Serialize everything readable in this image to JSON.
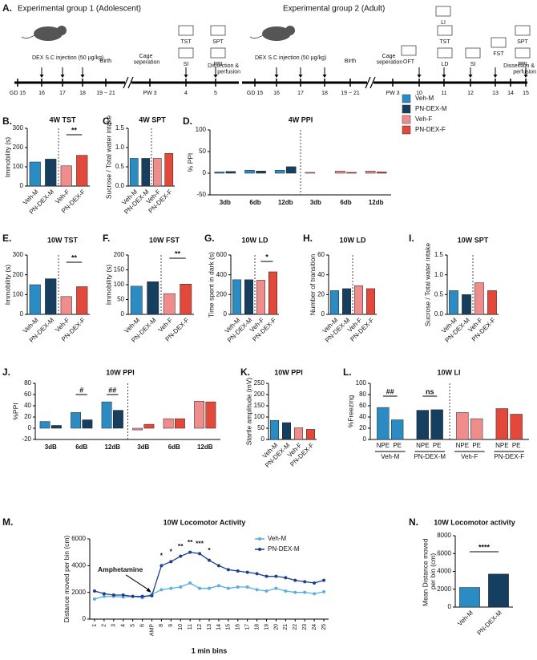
{
  "timeline": {
    "label": "A.",
    "groups": [
      {
        "title": "Experimental group 1 (Adolescent)",
        "injection": "DEX S.C injection (50 µg/kg)",
        "birth": "Birth",
        "cage": "Cage seperation",
        "end": "Dissection & perfusion",
        "ticks": [
          "GD 15",
          "16",
          "17",
          "18",
          "19 ~ 21",
          "PW 3",
          "4",
          "5"
        ],
        "tests": [
          "TST",
          "SPT",
          "SI",
          "PPI"
        ]
      },
      {
        "title": "Experimental group 2 (Adult)",
        "injection": "DEX S.C injection (50 µg/kg)",
        "birth": "Birth",
        "cage": "Cage seperation",
        "end": "Dissection & perfusion",
        "ticks": [
          "GD 15",
          "16",
          "17",
          "18",
          "19 ~ 21",
          "PW 3",
          "10",
          "11",
          "12",
          "13",
          "14",
          "15"
        ],
        "tests": [
          "LI",
          "TST",
          "OFT",
          "LD",
          "SI",
          "FST",
          "SPT",
          "PPI"
        ]
      }
    ]
  },
  "chart_data": [
    {
      "type": "bar",
      "label": "B.",
      "title": "4W TST",
      "ylabel": "Immobility (s)",
      "categories": [
        "Veh-M",
        "PN-DEX-M",
        "Veh-F",
        "PN-DEX-F"
      ],
      "values": [
        125,
        140,
        105,
        160
      ],
      "colors": [
        "#2b8cc4",
        "#163e5e",
        "#ef8c8c",
        "#e2493b"
      ],
      "ylim": [
        0,
        300
      ],
      "yticks": [
        0,
        100,
        200,
        300
      ],
      "significance": [
        "**"
      ]
    },
    {
      "type": "bar",
      "label": "C.",
      "title": "4W SPT",
      "ylabel": "Sucrose / Total water intake",
      "categories": [
        "Veh-M",
        "PN-DEX-M",
        "Veh-F",
        "PN-DEX-F"
      ],
      "values": [
        0.72,
        0.72,
        0.72,
        0.85
      ],
      "colors": [
        "#2b8cc4",
        "#163e5e",
        "#ef8c8c",
        "#e2493b"
      ],
      "ylim": [
        0,
        1.5
      ],
      "yticks": [
        {
          "value": 0,
          "label": "0.0"
        },
        0.5,
        {
          "value": 1,
          "label": "1.0"
        },
        1.5
      ]
    },
    {
      "type": "grouped",
      "label": "D.",
      "title": "4W PPI",
      "ylabel": "% PPI",
      "categories": [
        "3db",
        "6db",
        "12db",
        "3db",
        "6db",
        "12db"
      ],
      "ylim": [
        -50,
        100
      ],
      "yticks": [
        -50,
        0,
        50,
        100
      ],
      "series": [
        {
          "name": "Veh-M",
          "color": "#2b8cc4",
          "values": [
            3,
            7,
            7,
            null,
            null,
            null
          ]
        },
        {
          "name": "PN-DEX-M",
          "color": "#163e5e",
          "values": [
            4,
            5,
            15,
            null,
            null,
            null
          ]
        },
        {
          "name": "Veh-F",
          "color": "#ef8c8c",
          "values": [
            null,
            null,
            null,
            2,
            5,
            5
          ]
        },
        {
          "name": "PN-DEX-F",
          "color": "#e2493b",
          "values": [
            null,
            null,
            null,
            0,
            2,
            3
          ]
        }
      ]
    },
    {
      "type": "bar",
      "label": "E.",
      "title": "10W TST",
      "ylabel": "Immobility (s)",
      "categories": [
        "Veh-M",
        "PN-DEX-M",
        "Veh-F",
        "PN-DEX-F"
      ],
      "values": [
        150,
        180,
        90,
        140
      ],
      "colors": [
        "#2b8cc4",
        "#163e5e",
        "#ef8c8c",
        "#e2493b"
      ],
      "ylim": [
        0,
        300
      ],
      "yticks": [
        0,
        100,
        200,
        300
      ],
      "significance": [
        "**"
      ]
    },
    {
      "type": "bar",
      "label": "F.",
      "title": "10W FST",
      "ylabel": "Immobility (s)",
      "categories": [
        "Veh-M",
        "PN-DEX-M",
        "Veh-F",
        "PN-DEX-F"
      ],
      "values": [
        95,
        110,
        70,
        102
      ],
      "colors": [
        "#2b8cc4",
        "#163e5e",
        "#ef8c8c",
        "#e2493b"
      ],
      "ylim": [
        0,
        200
      ],
      "yticks": [
        0,
        50,
        100,
        150,
        200
      ],
      "significance": [
        "**"
      ]
    },
    {
      "type": "bar",
      "label": "G.",
      "title": "10W LD",
      "ylabel": "Time spent in dark (s)",
      "categories": [
        "Veh-M",
        "PN-DEX-M",
        "Veh-F",
        "PN-DEX-F"
      ],
      "values": [
        350,
        350,
        345,
        430
      ],
      "colors": [
        "#2b8cc4",
        "#163e5e",
        "#ef8c8c",
        "#e2493b"
      ],
      "ylim": [
        0,
        600
      ],
      "yticks": [
        0,
        200,
        400,
        600
      ],
      "significance": [
        "*"
      ]
    },
    {
      "type": "bar",
      "label": "H.",
      "title": "10W LD",
      "ylabel": "Number of transition",
      "categories": [
        "Veh-M",
        "PN-DEX-M",
        "Veh-F",
        "PN-DEX-F"
      ],
      "values": [
        24,
        26,
        29,
        26
      ],
      "colors": [
        "#2b8cc4",
        "#163e5e",
        "#ef8c8c",
        "#e2493b"
      ],
      "ylim": [
        0,
        60
      ],
      "yticks": [
        0,
        20,
        40,
        60
      ]
    },
    {
      "type": "bar",
      "label": "I.",
      "title": "10W SPT",
      "ylabel": "Sucrose / Total water intake",
      "categories": [
        "Veh-M",
        "PN-DEX-M",
        "Veh-F",
        "PN-DEX-F"
      ],
      "values": [
        0.6,
        0.5,
        0.8,
        0.6
      ],
      "colors": [
        "#2b8cc4",
        "#163e5e",
        "#ef8c8c",
        "#e2493b"
      ],
      "ylim": [
        0,
        1.5
      ],
      "yticks": [
        {
          "value": 0,
          "label": "0.0"
        },
        0.5,
        {
          "value": 1,
          "label": "1.0"
        },
        1.5
      ]
    },
    {
      "type": "grouped",
      "label": "J.",
      "title": "10W PPI",
      "ylabel": "%PPI",
      "categories": [
        "3dB",
        "6dB",
        "12dB",
        "3dB",
        "6dB",
        "12dB"
      ],
      "ylim": [
        -20,
        80
      ],
      "yticks": [
        -20,
        0,
        20,
        40,
        60,
        80
      ],
      "significance": [
        "#",
        "##"
      ],
      "series": [
        {
          "name": "Veh-M",
          "color": "#2b8cc4",
          "values": [
            12,
            28,
            47,
            null,
            null,
            null
          ]
        },
        {
          "name": "PN-DEX-M",
          "color": "#163e5e",
          "values": [
            5,
            15,
            32,
            null,
            null,
            null
          ]
        },
        {
          "name": "Veh-F",
          "color": "#ef8c8c",
          "values": [
            null,
            null,
            null,
            -3,
            17,
            48
          ]
        },
        {
          "name": "PN-DEX-F",
          "color": "#e2493b",
          "values": [
            null,
            null,
            null,
            7,
            17,
            47
          ]
        }
      ]
    },
    {
      "type": "bar",
      "label": "K.",
      "title": "10W PPI",
      "ylabel": "Startle amplitude (mV)",
      "categories": [
        "Veh-M",
        "PN-DEX-M",
        "Veh-F",
        "PN-DEX-F"
      ],
      "values": [
        85,
        75,
        52,
        45
      ],
      "colors": [
        "#2b8cc4",
        "#163e5e",
        "#ef8c8c",
        "#e2493b"
      ],
      "ylim": [
        0,
        250
      ],
      "yticks": [
        0,
        50,
        100,
        150,
        200,
        250
      ]
    },
    {
      "type": "paired",
      "label": "L.",
      "title": "10W LI",
      "ylabel": "%Freezing",
      "categories": [
        "NPE",
        "PE",
        "NPE",
        "PE",
        "NPE",
        "PE",
        "NPE",
        "PE"
      ],
      "groups": [
        "Veh-M",
        "PN-DEX-M",
        "Veh-F",
        "PN-DEX-F"
      ],
      "values": [
        57,
        35,
        52,
        53,
        48,
        37,
        55,
        45
      ],
      "colors": [
        "#2b8cc4",
        "#2b8cc4",
        "#163e5e",
        "#163e5e",
        "#ef8c8c",
        "#ef8c8c",
        "#e2493b",
        "#e2493b"
      ],
      "ylim": [
        0,
        100
      ],
      "yticks": [
        0,
        20,
        40,
        60,
        80,
        100
      ],
      "significance": [
        "##",
        "ns"
      ]
    },
    {
      "type": "line",
      "label": "M.",
      "title": "10W Locomotor Activity",
      "ylabel": "Distance moved per bin (cm)",
      "xlabel": "1 min bins",
      "annotation": "Amphetamine",
      "categories": [
        "1",
        "2",
        "3",
        "4",
        "5",
        "6",
        "AMP",
        "8",
        "9",
        "10",
        "11",
        "12",
        "13",
        "14",
        "15",
        "16",
        "17",
        "18",
        "19",
        "20",
        "21",
        "22",
        "23",
        "24",
        "25"
      ],
      "ylim": [
        0,
        6000
      ],
      "yticks": [
        0,
        2000,
        4000,
        6000
      ],
      "significance": [
        "*",
        "*",
        "**",
        "**",
        "***",
        "*"
      ],
      "series": [
        {
          "name": "Veh-M",
          "color": "#5aaee0",
          "values": [
            1500,
            1700,
            1700,
            1650,
            1700,
            1600,
            1850,
            2200,
            2300,
            2400,
            2700,
            2300,
            2300,
            2500,
            2300,
            2400,
            2400,
            2200,
            2100,
            2300,
            2100,
            2000,
            2000,
            1900,
            2050
          ]
        },
        {
          "name": "PN-DEX-M",
          "color": "#1b3f8a",
          "values": [
            2100,
            1900,
            1800,
            1800,
            1700,
            1700,
            1750,
            4000,
            4300,
            4700,
            5000,
            4900,
            4400,
            4000,
            3700,
            3600,
            3500,
            3400,
            3200,
            3200,
            3100,
            2900,
            2800,
            2700,
            2900
          ]
        }
      ]
    },
    {
      "type": "bar",
      "label": "N.",
      "title": "10W Locomotor activity",
      "ylabel": "Mean Distance moved per bin (cm)",
      "categories": [
        "Veh-M",
        "PN-DEX-M"
      ],
      "values": [
        2200,
        3700
      ],
      "colors": [
        "#2b8cc4",
        "#163e5e"
      ],
      "ylim": [
        0,
        8000
      ],
      "yticks": [
        0,
        2000,
        4000,
        6000,
        8000
      ],
      "significance": [
        "****"
      ]
    }
  ]
}
